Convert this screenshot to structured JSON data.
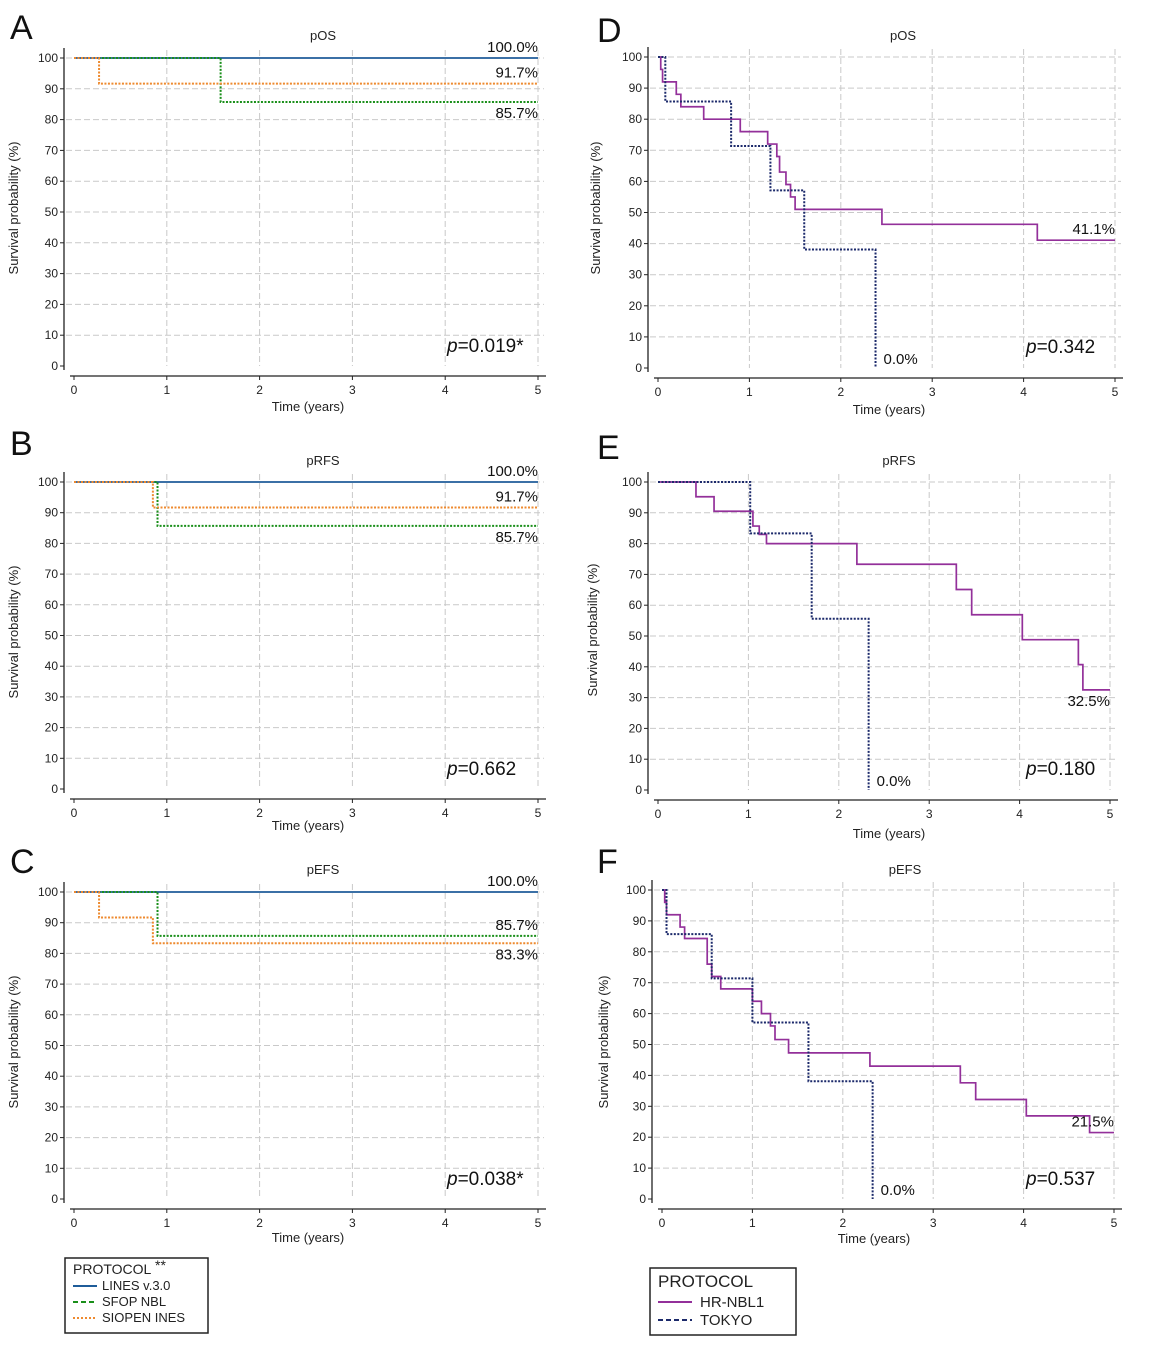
{
  "colors": {
    "lines": "#1f5c99",
    "sfop": "#1a8f1a",
    "siopen": "#ee8a2f",
    "hrnbl1": "#93309a",
    "tokyo": "#1c2a6b"
  },
  "chart_data": [
    {
      "type": "line",
      "panel": "A",
      "title": "pOS",
      "xlabel": "Time (years)",
      "ylabel": "Survival probability (%)",
      "xlim": [
        0,
        5
      ],
      "ylim": [
        0,
        100
      ],
      "x_ticks": [
        "0",
        "1",
        "2",
        "3",
        "4",
        "5"
      ],
      "y_ticks": [
        "0",
        "10",
        "20",
        "30",
        "40",
        "50",
        "60",
        "70",
        "80",
        "90",
        "100"
      ],
      "p_prefix": "p",
      "p_value": "=0.019*",
      "series": [
        {
          "name": "LINES v.3.0",
          "color": "#1f5c99",
          "dash": "solid",
          "steps": [
            [
              0,
              100
            ],
            [
              5,
              100
            ]
          ]
        },
        {
          "name": "SFOP NBL",
          "color": "#1a8f1a",
          "dash": "dotted",
          "steps": [
            [
              0,
              100
            ],
            [
              1.58,
              85.7
            ],
            [
              5,
              85.7
            ]
          ]
        },
        {
          "name": "SIOPEN INES",
          "color": "#ee8a2f",
          "dash": "dotted",
          "steps": [
            [
              0,
              100
            ],
            [
              0.27,
              91.7
            ],
            [
              5,
              91.7
            ]
          ]
        }
      ],
      "annotations": [
        {
          "text": "100.0%",
          "x": 5,
          "y": 100,
          "pos": "above"
        },
        {
          "text": "91.7%",
          "x": 5,
          "y": 91.7,
          "pos": "above"
        },
        {
          "text": "85.7%",
          "x": 5,
          "y": 85.7,
          "pos": "below"
        }
      ]
    },
    {
      "type": "line",
      "panel": "B",
      "title": "pRFS",
      "xlabel": "Time (years)",
      "ylabel": "Survival probability (%)",
      "xlim": [
        0,
        5
      ],
      "ylim": [
        0,
        100
      ],
      "x_ticks": [
        "0",
        "1",
        "2",
        "3",
        "4",
        "5"
      ],
      "y_ticks": [
        "0",
        "10",
        "20",
        "30",
        "40",
        "50",
        "60",
        "70",
        "80",
        "90",
        "100"
      ],
      "p_prefix": "p",
      "p_value": "=0.662",
      "series": [
        {
          "name": "LINES v.3.0",
          "color": "#1f5c99",
          "dash": "solid",
          "steps": [
            [
              0,
              100
            ],
            [
              5,
              100
            ]
          ]
        },
        {
          "name": "SFOP NBL",
          "color": "#1a8f1a",
          "dash": "dotted",
          "steps": [
            [
              0,
              100
            ],
            [
              0.9,
              85.7
            ],
            [
              5,
              85.7
            ]
          ]
        },
        {
          "name": "SIOPEN INES",
          "color": "#ee8a2f",
          "dash": "dotted",
          "steps": [
            [
              0,
              100
            ],
            [
              0.85,
              91.7
            ],
            [
              5,
              91.7
            ]
          ]
        }
      ],
      "annotations": [
        {
          "text": "100.0%",
          "x": 5,
          "y": 100,
          "pos": "above"
        },
        {
          "text": "91.7%",
          "x": 5,
          "y": 91.7,
          "pos": "above"
        },
        {
          "text": "85.7%",
          "x": 5,
          "y": 85.7,
          "pos": "below"
        }
      ]
    },
    {
      "type": "line",
      "panel": "C",
      "title": "pEFS",
      "xlabel": "Time (years)",
      "ylabel": "Survival probability (%)",
      "xlim": [
        0,
        5
      ],
      "ylim": [
        0,
        100
      ],
      "x_ticks": [
        "0",
        "1",
        "2",
        "3",
        "4",
        "5"
      ],
      "y_ticks": [
        "0",
        "10",
        "20",
        "30",
        "40",
        "50",
        "60",
        "70",
        "80",
        "90",
        "100"
      ],
      "p_prefix": "p",
      "p_value": "=0.038*",
      "series": [
        {
          "name": "LINES v.3.0",
          "color": "#1f5c99",
          "dash": "solid",
          "steps": [
            [
              0,
              100
            ],
            [
              5,
              100
            ]
          ]
        },
        {
          "name": "SFOP NBL",
          "color": "#1a8f1a",
          "dash": "dotted",
          "steps": [
            [
              0,
              100
            ],
            [
              0.9,
              85.7
            ],
            [
              5,
              85.7
            ]
          ]
        },
        {
          "name": "SIOPEN INES",
          "color": "#ee8a2f",
          "dash": "dotted",
          "steps": [
            [
              0,
              100
            ],
            [
              0.27,
              91.7
            ],
            [
              0.85,
              83.3
            ],
            [
              5,
              83.3
            ]
          ]
        }
      ],
      "annotations": [
        {
          "text": "100.0%",
          "x": 5,
          "y": 100,
          "pos": "above"
        },
        {
          "text": "85.7%",
          "x": 5,
          "y": 85.7,
          "pos": "above"
        },
        {
          "text": "83.3%",
          "x": 5,
          "y": 83.3,
          "pos": "below"
        }
      ]
    },
    {
      "type": "line",
      "panel": "D",
      "title": "pOS",
      "xlabel": "Time (years)",
      "ylabel": "Survival probability (%)",
      "xlim": [
        0,
        5
      ],
      "ylim": [
        0,
        100
      ],
      "x_ticks": [
        "0",
        "1",
        "2",
        "3",
        "4",
        "5"
      ],
      "y_ticks": [
        "0",
        "10",
        "20",
        "30",
        "40",
        "50",
        "60",
        "70",
        "80",
        "90",
        "100"
      ],
      "p_prefix": "p",
      "p_value": "=0.342",
      "series": [
        {
          "name": "HR-NBL1",
          "color": "#93309a",
          "dash": "solid",
          "steps": [
            [
              0,
              100
            ],
            [
              0.03,
              96
            ],
            [
              0.05,
              92
            ],
            [
              0.2,
              88
            ],
            [
              0.25,
              84
            ],
            [
              0.5,
              80
            ],
            [
              0.9,
              76
            ],
            [
              1.2,
              72
            ],
            [
              1.3,
              68
            ],
            [
              1.33,
              63
            ],
            [
              1.4,
              59
            ],
            [
              1.45,
              55
            ],
            [
              1.5,
              51
            ],
            [
              2.45,
              46.2
            ],
            [
              4.15,
              41.1
            ],
            [
              5,
              41.1
            ]
          ]
        },
        {
          "name": "TOKYO",
          "color": "#1c2a6b",
          "dash": "dotted",
          "steps": [
            [
              0,
              100
            ],
            [
              0.08,
              85.7
            ],
            [
              0.8,
              71.4
            ],
            [
              1.23,
              57.1
            ],
            [
              1.6,
              38.1
            ],
            [
              2.38,
              0
            ]
          ]
        }
      ],
      "annotations": [
        {
          "text": "41.1%",
          "x": 5,
          "y": 41.1,
          "pos": "above"
        },
        {
          "text": "0.0%",
          "x": 2.38,
          "y": 0,
          "pos": "right"
        }
      ]
    },
    {
      "type": "line",
      "panel": "E",
      "title": "pRFS",
      "xlabel": "Time (years)",
      "ylabel": "Survival probability (%)",
      "xlim": [
        0,
        5
      ],
      "ylim": [
        0,
        100
      ],
      "x_ticks": [
        "0",
        "1",
        "2",
        "3",
        "4",
        "5"
      ],
      "y_ticks": [
        "0",
        "10",
        "20",
        "30",
        "40",
        "50",
        "60",
        "70",
        "80",
        "90",
        "100"
      ],
      "p_prefix": "p",
      "p_value": "=0.180",
      "series": [
        {
          "name": "HR-NBL1",
          "color": "#93309a",
          "dash": "solid",
          "steps": [
            [
              0,
              100
            ],
            [
              0.42,
              95.2
            ],
            [
              0.62,
              90.5
            ],
            [
              1.05,
              85.7
            ],
            [
              1.12,
              83
            ],
            [
              1.2,
              80
            ],
            [
              2.2,
              73.3
            ],
            [
              3.3,
              65.1
            ],
            [
              3.47,
              56.9
            ],
            [
              4.03,
              48.8
            ],
            [
              4.65,
              40.7
            ],
            [
              4.7,
              32.5
            ],
            [
              5,
              32.5
            ]
          ]
        },
        {
          "name": "TOKYO",
          "color": "#1c2a6b",
          "dash": "dotted",
          "steps": [
            [
              0,
              100
            ],
            [
              1.02,
              83.3
            ],
            [
              1.7,
              55.6
            ],
            [
              2.33,
              0
            ]
          ]
        }
      ],
      "annotations": [
        {
          "text": "32.5%",
          "x": 5,
          "y": 32.5,
          "pos": "below"
        },
        {
          "text": "0.0%",
          "x": 2.33,
          "y": 0,
          "pos": "right"
        }
      ]
    },
    {
      "type": "line",
      "panel": "F",
      "title": "pEFS",
      "xlabel": "Time (years)",
      "ylabel": "Survival probability (%)",
      "xlim": [
        0,
        5
      ],
      "ylim": [
        0,
        100
      ],
      "x_ticks": [
        "0",
        "1",
        "2",
        "3",
        "4",
        "5"
      ],
      "y_ticks": [
        "0",
        "10",
        "20",
        "30",
        "40",
        "50",
        "60",
        "70",
        "80",
        "90",
        "100"
      ],
      "p_prefix": "p",
      "p_value": "=0.537",
      "series": [
        {
          "name": "HR-NBL1",
          "color": "#93309a",
          "dash": "solid",
          "steps": [
            [
              0,
              100
            ],
            [
              0.03,
              96
            ],
            [
              0.05,
              92
            ],
            [
              0.2,
              88
            ],
            [
              0.25,
              84.3
            ],
            [
              0.5,
              76
            ],
            [
              0.55,
              72
            ],
            [
              0.65,
              68
            ],
            [
              1.0,
              64
            ],
            [
              1.1,
              60
            ],
            [
              1.2,
              56
            ],
            [
              1.25,
              51.6
            ],
            [
              1.4,
              47.3
            ],
            [
              2.3,
              43
            ],
            [
              3.3,
              37.6
            ],
            [
              3.47,
              32.2
            ],
            [
              4.03,
              26.9
            ],
            [
              4.73,
              21.5
            ],
            [
              5,
              21.5
            ]
          ]
        },
        {
          "name": "TOKYO",
          "color": "#1c2a6b",
          "dash": "dotted",
          "steps": [
            [
              0,
              100
            ],
            [
              0.05,
              85.7
            ],
            [
              0.55,
              71.4
            ],
            [
              1.0,
              57.1
            ],
            [
              1.62,
              38.1
            ],
            [
              2.33,
              0
            ]
          ]
        }
      ],
      "annotations": [
        {
          "text": "21.5%",
          "x": 5,
          "y": 21.5,
          "pos": "above"
        },
        {
          "text": "0.0%",
          "x": 2.33,
          "y": 0,
          "pos": "right"
        }
      ]
    }
  ],
  "legend_left": {
    "title": "PROTOCOL",
    "title_marker": "**",
    "items": [
      {
        "label": "LINES v.3.0",
        "color": "#1f5c99",
        "dash": "solid"
      },
      {
        "label": "SFOP NBL",
        "color": "#1a8f1a",
        "dash": "dashed"
      },
      {
        "label": "SIOPEN INES",
        "color": "#ee8a2f",
        "dash": "dotted"
      }
    ]
  },
  "legend_right": {
    "title": "PROTOCOL",
    "items": [
      {
        "label": "HR-NBL1",
        "color": "#93309a",
        "dash": "solid"
      },
      {
        "label": "TOKYO",
        "color": "#1c2a6b",
        "dash": "dashed"
      }
    ]
  }
}
